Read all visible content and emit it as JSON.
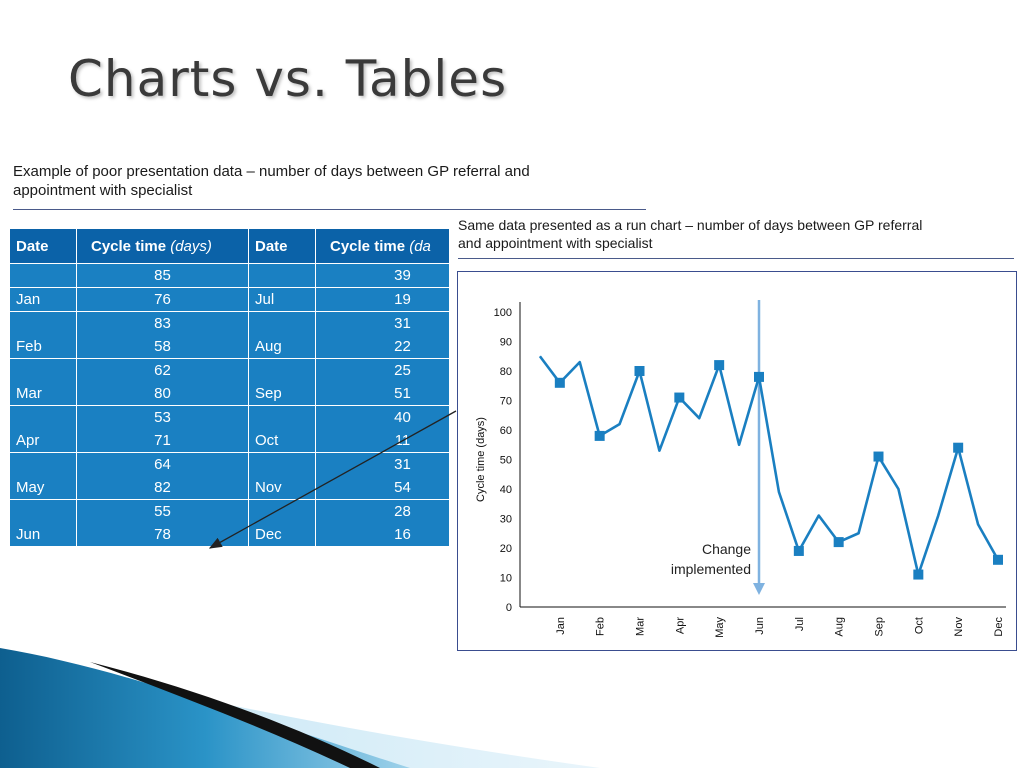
{
  "slide": {
    "title": "Charts vs. Tables"
  },
  "left_panel": {
    "caption_line1": "Example of poor presentation data – number of days between GP referral and",
    "caption_line2": "appointment with specialist",
    "table": {
      "headers": {
        "date": "Date",
        "cycle": "Cycle time",
        "cycle_unit": "(days)",
        "date2": "Date",
        "cycle2": "Cycle time",
        "cycle2_unit": "(da"
      },
      "rows": [
        {
          "d1": "",
          "v1": "85",
          "d2": "",
          "v2": "39"
        },
        {
          "d1": "Jan",
          "v1": "76",
          "d2": "Jul",
          "v2": "19"
        },
        {
          "d1": "",
          "v1": "83",
          "d2": "",
          "v2": "31"
        },
        {
          "d1": "Feb",
          "v1": "58",
          "d2": "Aug",
          "v2": "22"
        },
        {
          "d1": "",
          "v1": "62",
          "d2": "",
          "v2": "25"
        },
        {
          "d1": "Mar",
          "v1": "80",
          "d2": "Sep",
          "v2": "51"
        },
        {
          "d1": "",
          "v1": "53",
          "d2": "",
          "v2": "40"
        },
        {
          "d1": "Apr",
          "v1": "71",
          "d2": "Oct",
          "v2": "11"
        },
        {
          "d1": "",
          "v1": "64",
          "d2": "",
          "v2": "31"
        },
        {
          "d1": "May",
          "v1": "82",
          "d2": "Nov",
          "v2": "54"
        },
        {
          "d1": "",
          "v1": "55",
          "d2": "",
          "v2": "28"
        },
        {
          "d1": "Jun",
          "v1": "78",
          "d2": "Dec",
          "v2": "16"
        }
      ],
      "header_color": "#0b62a8",
      "body_color": "#1a80c2"
    }
  },
  "right_panel": {
    "caption_line1": "Same data presented as a run chart – number of days between GP referral",
    "caption_line2": "and appointment with specialist",
    "annotation_line1": "Change",
    "annotation_line2": "implemented"
  },
  "chart_data": {
    "type": "line",
    "ylabel": "Cycle time (days)",
    "xlabel": "",
    "ylim": [
      0,
      100
    ],
    "yticks": [
      "0",
      "10",
      "20",
      "30",
      "40",
      "50",
      "60",
      "70",
      "80",
      "90",
      "100"
    ],
    "categories": [
      "Jan",
      "Feb",
      "Mar",
      "Apr",
      "May",
      "Jun",
      "Jul",
      "Aug",
      "Sep",
      "Oct",
      "Nov",
      "Dec"
    ],
    "x": [
      0.5,
      1,
      1.5,
      2,
      2.5,
      3,
      3.5,
      4,
      4.5,
      5,
      5.5,
      6,
      6.5,
      7,
      7.5,
      8,
      8.5,
      9,
      9.5,
      10,
      10.5,
      11,
      11.5,
      12
    ],
    "values": [
      85,
      76,
      83,
      58,
      62,
      80,
      53,
      71,
      64,
      82,
      55,
      78,
      39,
      19,
      31,
      22,
      25,
      51,
      40,
      11,
      31,
      54,
      28,
      16
    ],
    "markers_at_month": true,
    "change_implemented_at": "Jun",
    "line_color": "#1a7fc1",
    "change_line_color": "#7fb2e0",
    "grid": false
  }
}
